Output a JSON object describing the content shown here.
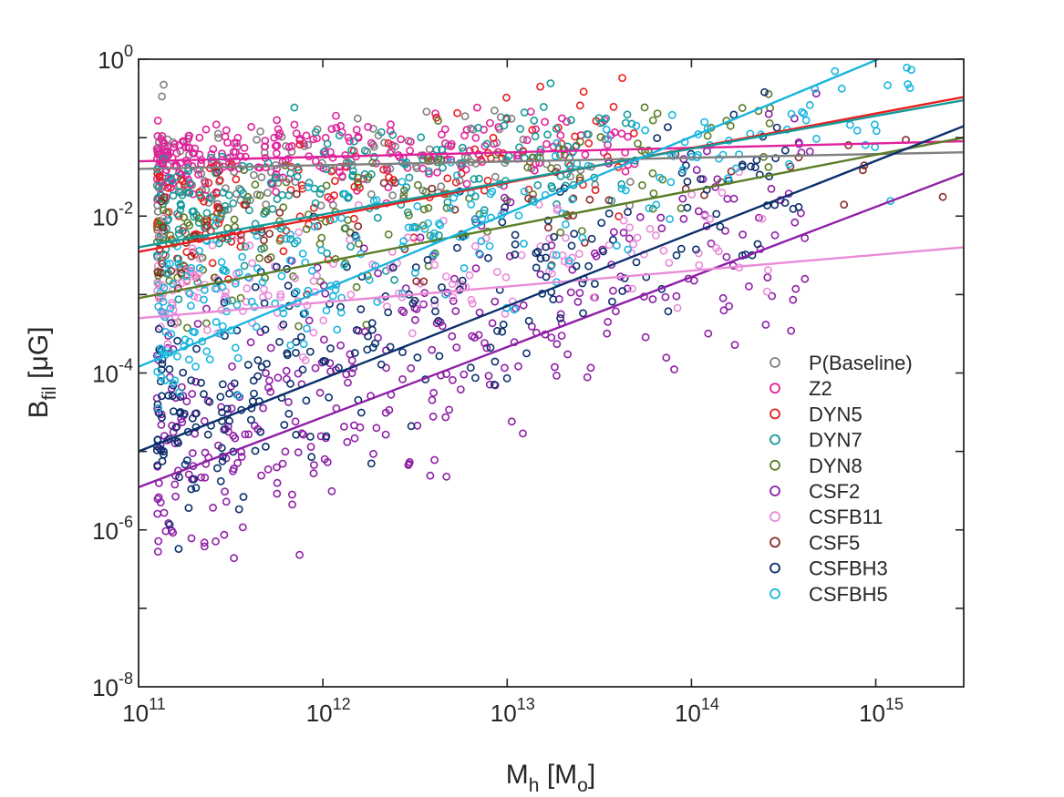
{
  "chart_data": {
    "type": "scatter",
    "title": "",
    "xlabel": {
      "base": "M",
      "sub": "h",
      "rest": " [M",
      "sub2": "o",
      "close": "]"
    },
    "ylabel": {
      "base": "B",
      "sub": "fil",
      "rest": " [μG]"
    },
    "xscale": "log",
    "yscale": "log",
    "xlim": [
      100000000000.0,
      3000000000000000.0
    ],
    "ylim": [
      1e-08,
      1
    ],
    "x_ticks": [
      {
        "value": 100000000000.0,
        "base": "10",
        "exp": "11"
      },
      {
        "value": 1000000000000.0,
        "base": "10",
        "exp": "12"
      },
      {
        "value": 10000000000000.0,
        "base": "10",
        "exp": "13"
      },
      {
        "value": 100000000000000.0,
        "base": "10",
        "exp": "14"
      },
      {
        "value": 1000000000000000.0,
        "base": "10",
        "exp": "15"
      }
    ],
    "y_ticks": [
      {
        "value": 1e-08,
        "base": "10",
        "exp": "-8"
      },
      {
        "value": 1e-06,
        "base": "10",
        "exp": "-6"
      },
      {
        "value": 0.0001,
        "base": "10",
        "exp": "-4"
      },
      {
        "value": 0.01,
        "base": "10",
        "exp": "-2"
      },
      {
        "value": 1,
        "base": "10",
        "exp": "0"
      }
    ],
    "grid": false,
    "legend_position": "lower-right",
    "marker": "open-circle",
    "series": [
      {
        "name": "P(Baseline)",
        "color": "#808080",
        "fit": {
          "x": [
            100000000000.0,
            3000000000000000.0
          ],
          "y": [
            0.04,
            0.065
          ]
        },
        "scatter": {
          "center": 0.04,
          "slope": 0.05,
          "spread": 0.3,
          "n": 160,
          "xmax": 50000000000000.0,
          "seed": 11
        }
      },
      {
        "name": "Z2",
        "color": "#e0219a",
        "fit": {
          "x": [
            100000000000.0,
            3000000000000000.0
          ],
          "y": [
            0.05,
            0.09
          ]
        },
        "scatter": {
          "center": 0.055,
          "slope": 0.05,
          "spread": 0.25,
          "n": 240,
          "xmax": 50000000000000.0,
          "seed": 12
        }
      },
      {
        "name": "DYN5",
        "color": "#e81e1e",
        "fit": {
          "x": [
            100000000000.0,
            3000000000000000.0
          ],
          "y": [
            0.0035,
            0.33
          ]
        },
        "scatter": {
          "center": 0.006,
          "slope": 0.45,
          "spread": 0.4,
          "n": 140,
          "xmax": 50000000000000.0,
          "seed": 13
        }
      },
      {
        "name": "DYN7",
        "color": "#159a9a",
        "fit": {
          "x": [
            100000000000.0,
            3000000000000000.0
          ],
          "y": [
            0.004,
            0.3
          ]
        },
        "scatter": {
          "center": 0.008,
          "slope": 0.42,
          "spread": 0.4,
          "n": 200,
          "xmax": 50000000000000.0,
          "seed": 14
        }
      },
      {
        "name": "DYN8",
        "color": "#5a7d28",
        "fit": {
          "x": [
            100000000000.0,
            3000000000000000.0
          ],
          "y": [
            0.0009,
            0.1
          ]
        },
        "scatter": {
          "center": 0.003,
          "slope": 0.45,
          "spread": 0.45,
          "n": 150,
          "xmax": 300000000000000.0,
          "seed": 15
        }
      },
      {
        "name": "CSF2",
        "color": "#8e1fa6",
        "fit": {
          "x": [
            100000000000.0,
            3000000000000000.0
          ],
          "y": [
            3.5e-06,
            0.035
          ]
        },
        "scatter": {
          "center": 6e-06,
          "slope": 0.88,
          "spread": 0.75,
          "n": 330,
          "xmax": 500000000000000.0,
          "seed": 16
        }
      },
      {
        "name": "CSFB11",
        "color": "#e98bd8",
        "fit": {
          "x": [
            100000000000.0,
            3000000000000000.0
          ],
          "y": [
            0.0005,
            0.004
          ]
        },
        "scatter": {
          "center": 0.0008,
          "slope": 0.25,
          "spread": 0.35,
          "n": 160,
          "xmax": 300000000000000.0,
          "seed": 17
        }
      },
      {
        "name": "CSF5",
        "color": "#8a2a2a",
        "fit": null,
        "scatter": {
          "center": 0.003,
          "slope": 0.3,
          "spread": 0.45,
          "n": 60,
          "xmax": 3000000000000000.0,
          "seed": 18
        }
      },
      {
        "name": "CSFBH3",
        "color": "#0b2f6b",
        "fit": {
          "x": [
            100000000000.0,
            3000000000000000.0
          ],
          "y": [
            1e-05,
            0.14
          ]
        },
        "scatter": {
          "center": 2e-05,
          "slope": 0.9,
          "spread": 0.7,
          "n": 260,
          "xmax": 400000000000000.0,
          "seed": 19
        }
      },
      {
        "name": "CSFBH5",
        "color": "#19b5dd",
        "fit": {
          "x": [
            100000000000.0,
            1030000000000000.0
          ],
          "y": [
            0.00012,
            1.0
          ]
        },
        "scatter": {
          "center": 0.0003,
          "slope": 0.8,
          "spread": 0.55,
          "n": 240,
          "xmax": 2000000000000000.0,
          "seed": 20
        }
      }
    ]
  }
}
